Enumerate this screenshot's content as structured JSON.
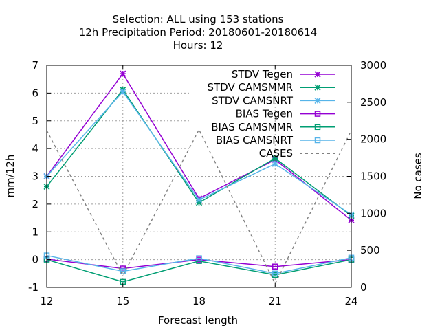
{
  "chart_data": {
    "type": "line",
    "title_lines": [
      "Selection: ALL using   153 stations",
      "12h Precipitation   Period: 20180601-20180614",
      "Hours:  12"
    ],
    "xlabel": "Forecast length",
    "ylabel": "mm/12h",
    "y2label": "No cases",
    "x": [
      12,
      15,
      18,
      21,
      24
    ],
    "xticks": [
      "12",
      "15",
      "18",
      "21",
      "24"
    ],
    "ylim": [
      -1,
      7
    ],
    "yticks": [
      "-1",
      "0",
      "1",
      "2",
      "3",
      "4",
      "5",
      "6",
      "7"
    ],
    "y2lim": [
      0,
      3000
    ],
    "y2ticks": [
      "0",
      "500",
      "1000",
      "1500",
      "2000",
      "2500",
      "3000"
    ],
    "grid": "dashed-vertical-and-horizontal-at-major-ticks",
    "legend_position": "top-right",
    "series": [
      {
        "name": "STDV Tegen",
        "values": [
          3.0,
          6.7,
          2.2,
          3.6,
          1.42
        ],
        "color": "#9400d3",
        "marker": "star",
        "axis": "y1"
      },
      {
        "name": "STDV CAMSMMR",
        "values": [
          2.63,
          6.12,
          2.05,
          3.65,
          1.58
        ],
        "color": "#009e73",
        "marker": "star",
        "axis": "y1"
      },
      {
        "name": "STDV CAMSNRT",
        "values": [
          3.0,
          6.05,
          2.15,
          3.45,
          1.62
        ],
        "color": "#56b4e9",
        "marker": "star",
        "axis": "y1"
      },
      {
        "name": "BIAS Tegen",
        "values": [
          0.02,
          -0.32,
          0.0,
          -0.25,
          0.0
        ],
        "color": "#9400d3",
        "marker": "square",
        "axis": "y1"
      },
      {
        "name": "BIAS CAMSMMR",
        "values": [
          0.0,
          -0.8,
          -0.05,
          -0.55,
          0.0
        ],
        "color": "#009e73",
        "marker": "square",
        "axis": "y1"
      },
      {
        "name": "BIAS CAMSNRT",
        "values": [
          0.15,
          -0.42,
          0.05,
          -0.5,
          0.07
        ],
        "color": "#56b4e9",
        "marker": "square",
        "axis": "y1"
      },
      {
        "name": "CASES",
        "values": [
          2120,
          160,
          2130,
          50,
          2120
        ],
        "color": "#808080",
        "marker": "none",
        "axis": "y2",
        "dash": "4,4"
      }
    ]
  }
}
